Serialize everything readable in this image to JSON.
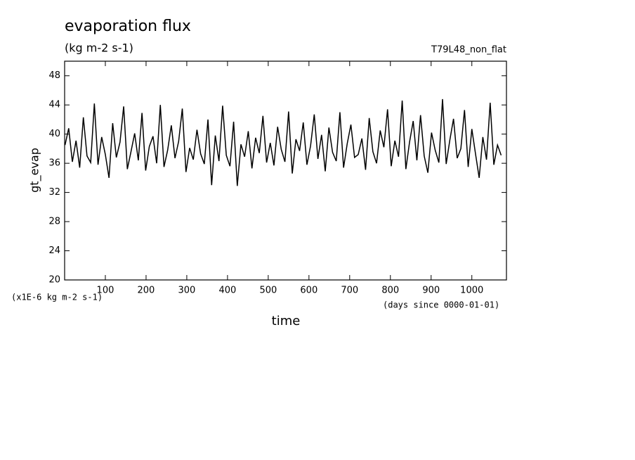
{
  "chart_data": {
    "type": "line",
    "title": "evaporation flux",
    "subtitle": "(kg m-2 s-1)",
    "annotation": "T79L48_non_flat",
    "y_label": "gt_evap",
    "x_label": "time",
    "y_unit_note": "(x1E-6 kg m-2 s-1)",
    "x_unit_note": "(days since 0000-01-01)",
    "xlim": [
      0,
      1085
    ],
    "ylim": [
      20,
      50
    ],
    "xticks": [
      100,
      200,
      300,
      400,
      500,
      600,
      700,
      800,
      900,
      1000
    ],
    "yticks": [
      20,
      24,
      28,
      32,
      36,
      40,
      44,
      48
    ],
    "color": "#000000",
    "x": [
      1,
      10,
      19,
      28,
      37,
      46,
      55,
      64,
      73,
      82,
      91,
      100,
      109,
      118,
      127,
      136,
      145,
      154,
      163,
      172,
      181,
      190,
      199,
      208,
      217,
      226,
      235,
      244,
      253,
      262,
      271,
      280,
      289,
      298,
      307,
      316,
      325,
      334,
      343,
      352,
      361,
      370,
      379,
      388,
      397,
      406,
      415,
      424,
      433,
      442,
      451,
      460,
      469,
      478,
      487,
      496,
      505,
      514,
      523,
      532,
      541,
      550,
      559,
      568,
      577,
      586,
      595,
      604,
      613,
      622,
      631,
      640,
      649,
      658,
      667,
      676,
      685,
      694,
      703,
      712,
      721,
      730,
      739,
      748,
      757,
      766,
      775,
      784,
      793,
      802,
      811,
      820,
      829,
      838,
      847,
      856,
      865,
      874,
      883,
      892,
      901,
      910,
      919,
      928,
      937,
      946,
      955,
      964,
      973,
      982,
      991,
      1000,
      1009,
      1018,
      1027,
      1036,
      1045,
      1054,
      1063,
      1072
    ],
    "values": [
      38.5,
      40.8,
      36.2,
      39.1,
      35.4,
      42.3,
      37.0,
      36.1,
      44.2,
      35.8,
      39.6,
      37.2,
      34.0,
      41.5,
      36.8,
      38.9,
      43.8,
      35.2,
      37.6,
      40.1,
      36.4,
      42.9,
      35.0,
      38.3,
      39.7,
      36.0,
      44.0,
      35.5,
      37.8,
      41.2,
      36.7,
      39.0,
      43.5,
      34.8,
      38.1,
      36.5,
      40.6,
      37.3,
      35.9,
      42.0,
      33.0,
      39.8,
      36.3,
      43.9,
      37.1,
      35.6,
      41.7,
      32.9,
      38.6,
      36.9,
      40.4,
      35.3,
      39.5,
      37.4,
      42.5,
      36.1,
      38.8,
      35.7,
      41.0,
      37.9,
      36.2,
      43.1,
      34.6,
      39.3,
      37.7,
      41.6,
      35.8,
      38.4,
      42.7,
      36.6,
      39.9,
      34.9,
      40.9,
      37.5,
      36.3,
      43.0,
      35.4,
      38.7,
      41.3,
      36.8,
      37.2,
      39.4,
      35.1,
      42.2,
      37.6,
      36.0,
      40.5,
      38.2,
      43.4,
      35.6,
      39.1,
      36.9,
      44.6,
      35.2,
      38.9,
      41.8,
      36.4,
      42.6,
      37.0,
      34.7,
      40.2,
      37.8,
      36.1,
      44.8,
      35.9,
      39.2,
      42.1,
      36.7,
      38.0,
      43.3,
      35.5,
      40.7,
      37.3,
      34.0,
      39.6,
      36.5,
      44.3,
      35.8,
      38.5,
      37.1
    ]
  }
}
